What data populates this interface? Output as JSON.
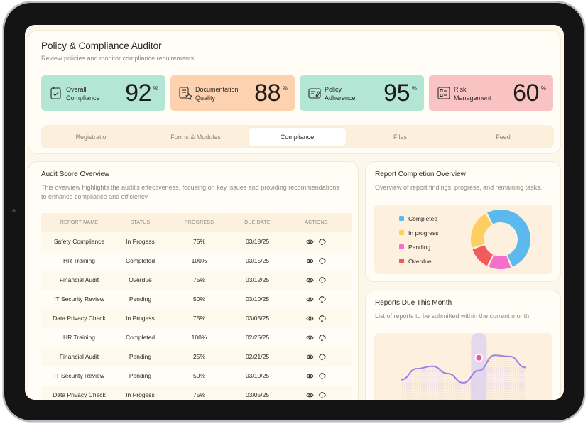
{
  "header": {
    "title": "Policy & Compliance Auditor",
    "subtitle": "Review policies and monitor compliance requirements"
  },
  "kpis": [
    {
      "label_line1": "Overall",
      "label_line2": "Compliance",
      "value": "92",
      "unit": "%",
      "color": "#b3e6d4",
      "icon": "clipboard-check-icon"
    },
    {
      "label_line1": "Documentation",
      "label_line2": "Quality",
      "value": "88",
      "unit": "%",
      "color": "#fcd2b0",
      "icon": "document-star-icon"
    },
    {
      "label_line1": "Policy",
      "label_line2": "Adherence",
      "value": "95",
      "unit": "%",
      "color": "#b3e6d4",
      "icon": "policy-doc-icon"
    },
    {
      "label_line1": "Risk",
      "label_line2": "Management",
      "value": "60",
      "unit": "%",
      "color": "#f9c3c3",
      "icon": "risk-list-icon"
    }
  ],
  "tabs": [
    {
      "label": "Registration",
      "active": false
    },
    {
      "label": "Forms & Modules",
      "active": false
    },
    {
      "label": "Compliance",
      "active": true
    },
    {
      "label": "Files",
      "active": false
    },
    {
      "label": "Feed",
      "active": false
    }
  ],
  "audit": {
    "title": "Audit Score Overview",
    "description": "This overview highlights the audit's effectiveness, focusing on key issues and providing recommendations to enhance compliance and efficiency.",
    "columns": [
      "REPORT NAME",
      "STATUS",
      "PROGRESS",
      "DUE DATE",
      "ACTIONS"
    ],
    "rows": [
      {
        "name": "Safety Compliance",
        "status": "In Progess",
        "progress": "75%",
        "due": "03/18/25"
      },
      {
        "name": "HR Training",
        "status": "Completed",
        "progress": "100%",
        "due": "03/15/25"
      },
      {
        "name": "Financial Audit",
        "status": "Overdue",
        "progress": "75%",
        "due": "03/12/25"
      },
      {
        "name": "IT Security Review",
        "status": "Pending",
        "progress": "50%",
        "due": "03/10/25"
      },
      {
        "name": "Data Privacy Check",
        "status": "In Progess",
        "progress": "75%",
        "due": "03/05/25"
      },
      {
        "name": "HR Training",
        "status": "Completed",
        "progress": "100%",
        "due": "02/25/25"
      },
      {
        "name": "Financial Audit",
        "status": "Pending",
        "progress": "25%",
        "due": "02/21/25"
      },
      {
        "name": "IT Security Review",
        "status": "Pending",
        "progress": "50%",
        "due": "03/10/25"
      },
      {
        "name": "Data Privacy Check",
        "status": "In Progess",
        "progress": "75%",
        "due": "03/05/25"
      }
    ],
    "action_icons": [
      "eye-icon",
      "cloud-download-icon"
    ]
  },
  "report_completion": {
    "title": "Report Completion Overview",
    "description": "Overview of report findings, progress, and remaining tasks.",
    "legend": [
      {
        "label": "Completed",
        "color": "#5bb9ee"
      },
      {
        "label": "In progress",
        "color": "#fdcf60"
      },
      {
        "label": "Pending",
        "color": "#f36fc9"
      },
      {
        "label": "Overdue",
        "color": "#f25b5b"
      }
    ]
  },
  "chart_data": [
    {
      "type": "pie",
      "donut": true,
      "categories": [
        "Completed",
        "In progress",
        "Overdue",
        "Pending"
      ],
      "values": [
        52,
        22,
        13,
        13
      ],
      "colors": [
        "#5bb9ee",
        "#fdcf60",
        "#f25b5b",
        "#f36fc9"
      ]
    },
    {
      "type": "line",
      "x": [
        0,
        1,
        2,
        3,
        4,
        5,
        6,
        7,
        8
      ],
      "values": [
        40,
        58,
        62,
        50,
        35,
        55,
        80,
        78,
        60
      ],
      "ylim": [
        0,
        100
      ],
      "highlight_index": 5,
      "color": "#9b83e0"
    }
  ],
  "reports_due": {
    "title": "Reports Due This Month",
    "description": "List of reports to be submitted within the current month."
  }
}
